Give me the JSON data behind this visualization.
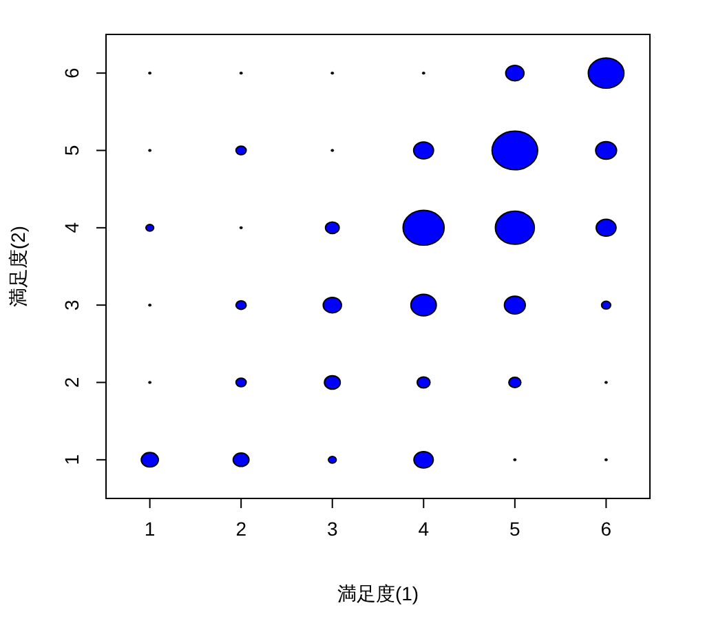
{
  "chart_data": {
    "type": "bubble",
    "xlabel": "満足度(1)",
    "ylabel": "満足度(2)",
    "xlim": [
      0.52,
      6.48
    ],
    "ylim": [
      0.5,
      6.5
    ],
    "xticks": [
      1,
      2,
      3,
      4,
      5,
      6
    ],
    "yticks": [
      1,
      2,
      3,
      4,
      5,
      6
    ],
    "series": [
      {
        "x": [
          1,
          2,
          3,
          4,
          5,
          6,
          1,
          2,
          3,
          4,
          5,
          6,
          1,
          2,
          3,
          4,
          5,
          6,
          1,
          2,
          3,
          4,
          5,
          6,
          1,
          2,
          3,
          4,
          5,
          6,
          1,
          2,
          3,
          4,
          5,
          6
        ],
        "values": [
          1,
          1,
          1,
          1,
          1,
          1,
          2,
          2,
          2,
          2,
          2,
          2,
          3,
          3,
          3,
          3,
          3,
          3,
          4,
          4,
          4,
          4,
          4,
          4,
          5,
          5,
          5,
          5,
          5,
          5,
          6,
          6,
          6,
          6,
          6,
          6
        ],
        "sizes": [
          0.14,
          0.12,
          0.03,
          0.18,
          0.004,
          0.004,
          0.004,
          0.05,
          0.12,
          0.08,
          0.07,
          0.004,
          0.004,
          0.05,
          0.16,
          0.31,
          0.21,
          0.04,
          0.03,
          0.004,
          0.09,
          0.81,
          0.73,
          0.19,
          0.004,
          0.05,
          0.004,
          0.19,
          1,
          0.21,
          0.004,
          0.004,
          0.004,
          0.004,
          0.16,
          0.61
        ],
        "colors": [
          "#0000ff",
          "#0000ff",
          "#0000ff",
          "#0000ff",
          "#000000",
          "#000000",
          "#000000",
          "#0000ff",
          "#0000ff",
          "#0000ff",
          "#0000ff",
          "#000000",
          "#000000",
          "#0000ff",
          "#0000ff",
          "#0000ff",
          "#0000ff",
          "#0000ff",
          "#0000ff",
          "#000000",
          "#0000ff",
          "#0000ff",
          "#0000ff",
          "#0000ff",
          "#000000",
          "#0000ff",
          "#000000",
          "#0000ff",
          "#0000ff",
          "#0000ff",
          "#000000",
          "#000000",
          "#000000",
          "#000000",
          "#0000ff",
          "#0000ff"
        ]
      }
    ],
    "grid": false
  }
}
